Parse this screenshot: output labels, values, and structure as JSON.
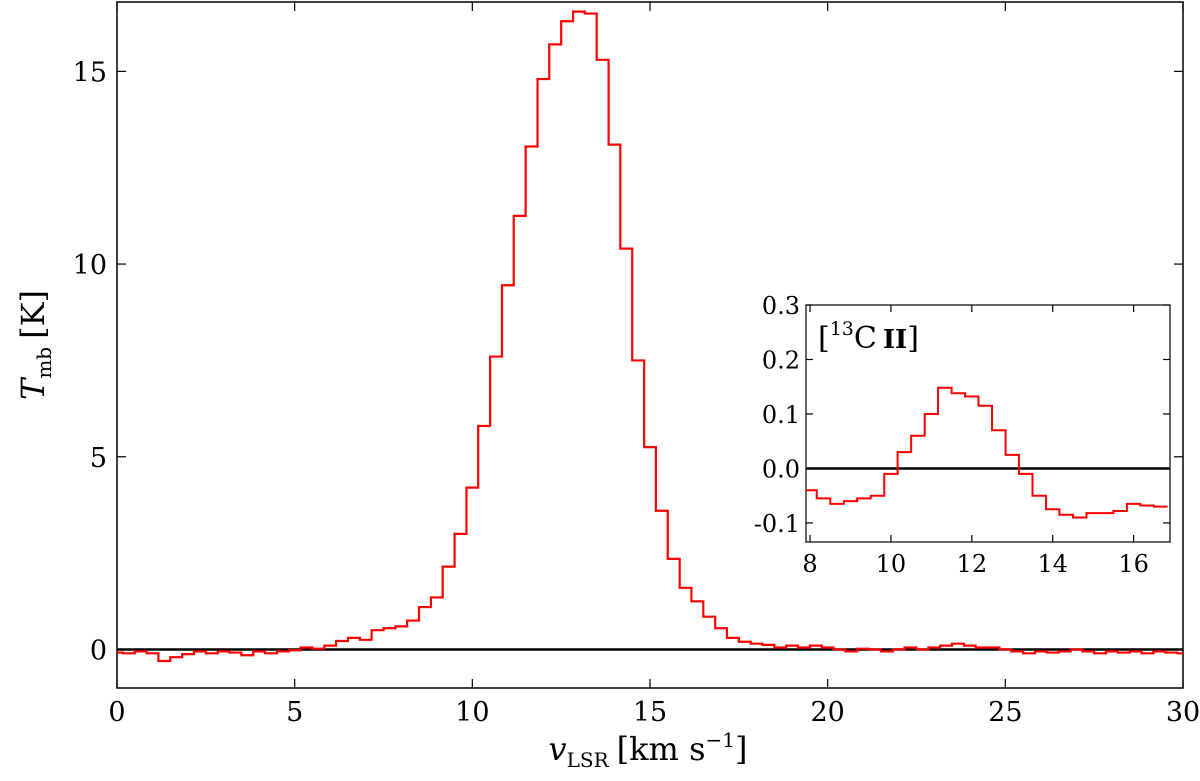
{
  "chart_data": [
    {
      "type": "line",
      "drawstyle": "steps-mid",
      "title": "",
      "xlabel_main": "v",
      "xlabel_sub": "LSR",
      "xlabel_units": "[km s",
      "xlabel_units_exp": "−1",
      "xlabel_units_close": "]",
      "ylabel_main": "T",
      "ylabel_sub": "mb",
      "ylabel_units": "[K]",
      "xlim": [
        0,
        30
      ],
      "ylim": [
        -1.0,
        16.8
      ],
      "xticks": [
        0,
        5,
        10,
        15,
        20,
        25,
        30
      ],
      "xtick_labels": [
        "0",
        "5",
        "10",
        "15",
        "20",
        "25",
        "30"
      ],
      "yticks": [
        0,
        5,
        10,
        15
      ],
      "ytick_labels": [
        "0",
        "5",
        "10",
        "15"
      ],
      "baseline": 0,
      "line_color": "#ff0000",
      "baseline_color": "#000000",
      "series": [
        {
          "x": [
            0.0,
            0.33,
            0.67,
            1.0,
            1.33,
            1.67,
            2.0,
            2.33,
            2.67,
            3.0,
            3.33,
            3.67,
            4.0,
            4.33,
            4.67,
            5.0,
            5.33,
            5.67,
            6.0,
            6.33,
            6.67,
            7.0,
            7.33,
            7.67,
            8.0,
            8.33,
            8.67,
            9.0,
            9.33,
            9.67,
            10.0,
            10.33,
            10.67,
            11.0,
            11.33,
            11.67,
            12.0,
            12.33,
            12.67,
            13.0,
            13.33,
            13.67,
            14.0,
            14.33,
            14.67,
            15.0,
            15.33,
            15.67,
            16.0,
            16.33,
            16.67,
            17.0,
            17.33,
            17.67,
            18.0,
            18.33,
            18.67,
            19.0,
            19.33,
            19.67,
            20.0,
            20.33,
            20.67,
            21.0,
            21.33,
            21.67,
            22.0,
            22.33,
            22.67,
            23.0,
            23.33,
            23.67,
            24.0,
            24.33,
            24.67,
            25.0,
            25.33,
            25.67,
            26.0,
            26.33,
            26.67,
            27.0,
            27.33,
            27.67,
            28.0,
            28.33,
            28.67,
            29.0,
            29.33,
            29.67,
            30.0
          ],
          "values": [
            -0.08,
            -0.1,
            -0.05,
            -0.1,
            -0.3,
            -0.2,
            -0.12,
            -0.05,
            -0.1,
            -0.05,
            -0.08,
            -0.15,
            -0.05,
            -0.1,
            -0.05,
            -0.02,
            0.05,
            0.02,
            0.1,
            0.22,
            0.3,
            0.25,
            0.5,
            0.55,
            0.6,
            0.75,
            1.1,
            1.35,
            2.15,
            3.0,
            4.2,
            5.8,
            7.6,
            9.45,
            11.25,
            13.05,
            14.8,
            15.7,
            16.3,
            16.55,
            16.5,
            15.3,
            13.1,
            10.4,
            7.5,
            5.25,
            3.6,
            2.35,
            1.6,
            1.25,
            0.85,
            0.55,
            0.3,
            0.2,
            0.15,
            0.12,
            0.05,
            0.1,
            0.05,
            0.1,
            0.05,
            0.0,
            -0.05,
            0.02,
            0.0,
            -0.05,
            0.0,
            0.05,
            0.0,
            0.05,
            0.1,
            0.15,
            0.1,
            0.05,
            0.05,
            0.0,
            -0.05,
            -0.1,
            -0.05,
            -0.08,
            -0.05,
            0.0,
            -0.05,
            -0.1,
            -0.05,
            -0.08,
            -0.05,
            -0.1,
            -0.05,
            -0.08,
            -0.1
          ]
        }
      ]
    },
    {
      "type": "line",
      "drawstyle": "steps-mid",
      "title": "",
      "annotation_pre": "[",
      "annotation_sup": "13",
      "annotation_main": "C",
      "annotation_ion": "II",
      "annotation_post": "]",
      "xlim": [
        7.9,
        16.9
      ],
      "ylim": [
        -0.135,
        0.3
      ],
      "xticks": [
        8,
        10,
        12,
        14,
        16
      ],
      "xtick_labels": [
        "8",
        "10",
        "12",
        "14",
        "16"
      ],
      "yticks": [
        -0.1,
        0.0,
        0.1,
        0.2,
        0.3
      ],
      "ytick_labels": [
        "-0.1",
        "0.0",
        "0.1",
        "0.2",
        "0.3"
      ],
      "baseline": 0,
      "line_color": "#ff0000",
      "baseline_color": "#000000",
      "series": [
        {
          "x": [
            8.0,
            8.33,
            8.67,
            9.0,
            9.33,
            9.67,
            10.0,
            10.33,
            10.67,
            11.0,
            11.33,
            11.67,
            12.0,
            12.33,
            12.67,
            13.0,
            13.33,
            13.67,
            14.0,
            14.33,
            14.67,
            15.0,
            15.33,
            15.67,
            16.0,
            16.33,
            16.67
          ],
          "values": [
            -0.04,
            -0.055,
            -0.065,
            -0.06,
            -0.055,
            -0.05,
            -0.01,
            0.03,
            0.06,
            0.1,
            0.148,
            0.138,
            0.132,
            0.115,
            0.07,
            0.025,
            -0.01,
            -0.05,
            -0.075,
            -0.085,
            -0.09,
            -0.082,
            -0.082,
            -0.078,
            -0.065,
            -0.068,
            -0.07
          ]
        }
      ]
    }
  ]
}
